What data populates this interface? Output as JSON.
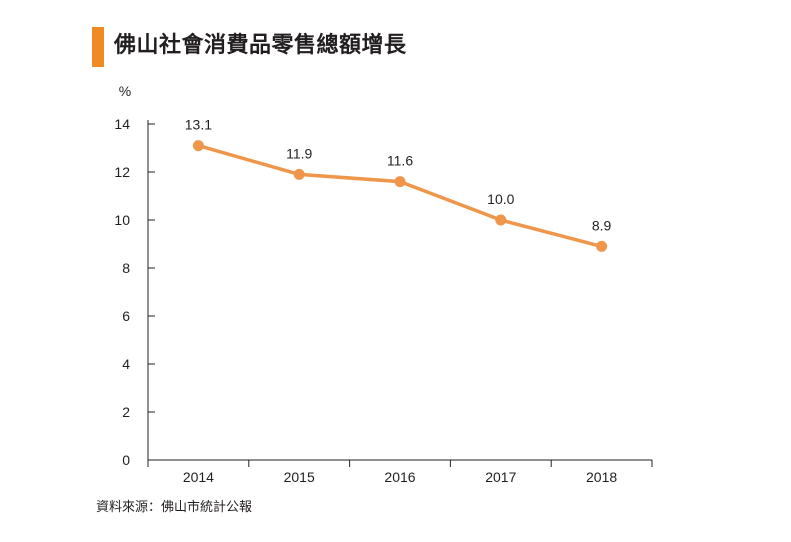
{
  "title": "佛山社會消費品零售總額增長",
  "source": "資料來源：佛山市統計公報",
  "colors": {
    "accent": "#f08a24",
    "line": "#f0964a",
    "axis": "#231f20"
  },
  "chart_data": {
    "type": "line",
    "title": "佛山社會消費品零售總額增長",
    "xlabel": "",
    "ylabel": "%",
    "categories": [
      "2014",
      "2015",
      "2016",
      "2017",
      "2018"
    ],
    "series": [
      {
        "name": "佛山社會消費品零售總額增長",
        "values": [
          13.1,
          11.9,
          11.6,
          10.0,
          8.9
        ],
        "labels": [
          "13.1",
          "11.9",
          "11.6",
          "10.0",
          "8.9"
        ]
      }
    ],
    "ylim": [
      0,
      14
    ],
    "yticks": [
      "0",
      "2",
      "4",
      "6",
      "8",
      "10",
      "12",
      "14"
    ],
    "grid": false,
    "legend": "none"
  }
}
